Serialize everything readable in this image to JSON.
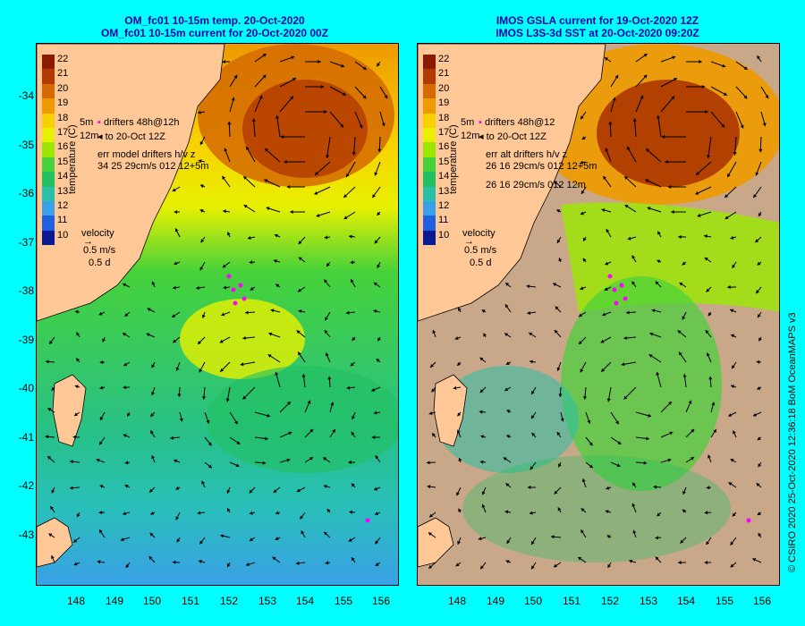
{
  "left_panel": {
    "title_line1": "OM_fc01 10-15m temp. 20-Oct-2020",
    "title_line2": "OM_fc01 10-15m current for 20-Oct-2020 00Z",
    "drifter_label": "drifters 48h@12h",
    "drifter_label2": "to 20-Oct 12Z",
    "err_line1": "err model drifters h/v z",
    "err_line2": "34 25 29cm/s 012 12+5m",
    "err_line3": "",
    "depth_left1": "5m",
    "depth_left2": "12m"
  },
  "right_panel": {
    "title_line1": "IMOS GSLA current for 19-Oct-2020 12Z",
    "title_line2": "IMOS L3S-3d SST at 20-Oct-2020 09:20Z",
    "drifter_label": "drifters 48h@12",
    "drifter_label2": "to 20-Oct 12Z",
    "err_line1": "err alt drifters h/v z",
    "err_line2": "26 16 29cm/s 012 12+5m",
    "err_line3": "26 16 29cm/s 012 12m",
    "depth_left1": "5m",
    "depth_left2": "12m"
  },
  "colorbar": {
    "ticks": [
      "22",
      "21",
      "20",
      "19",
      "18",
      "17",
      "16",
      "15",
      "14",
      "13",
      "12",
      "11",
      "10"
    ],
    "unit_label": "temperature (C)",
    "colors": [
      "#8b1a00",
      "#b23a00",
      "#d46a00",
      "#ee9a00",
      "#f8d000",
      "#e8f000",
      "#9ae800",
      "#46d23a",
      "#22c060",
      "#28c0a8",
      "#3aa0e8",
      "#2060e0",
      "#0a1a90"
    ]
  },
  "velocity_legend": {
    "title": "velocity",
    "speed": "0.5 m/s",
    "time": "0.5 d"
  },
  "axes": {
    "y_ticks": [
      "-34",
      "-35",
      "-36",
      "-37",
      "-38",
      "-39",
      "-40",
      "-41",
      "-42",
      "-43"
    ],
    "x_ticks": [
      "148",
      "149",
      "150",
      "151",
      "152",
      "153",
      "154",
      "155",
      "156"
    ]
  },
  "colors": {
    "background": "#00ffff",
    "land": "#ffc896",
    "nodata": "#c8a888",
    "drifters": "#ff00ff"
  },
  "credit": "© CSIRO 2020   25-Oct-2020 12:36:18 BoM OceanMAPS v3"
}
